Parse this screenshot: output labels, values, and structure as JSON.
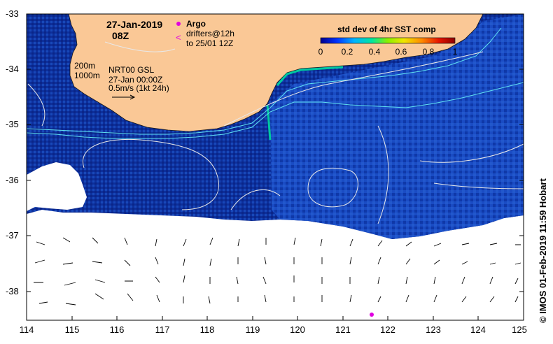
{
  "map": {
    "date": "27-Jan-2019",
    "hour": "08Z",
    "argo_label": "Argo",
    "drifters_label_line1": "drifters@12h",
    "drifters_label_line2": "to 25/01 12Z",
    "isobath_200": "200m",
    "isobath_1000": "1000m",
    "product_line1": "NRT00 GSL",
    "product_line2": "27-Jan 00:00Z",
    "product_line3": "0.5m/s (1kt 24h)",
    "credit": "© IMOS 01-Feb-2019 11:59 Hobart",
    "colors": {
      "land": "#fac896",
      "ocean_low": "#0a2a96",
      "ocean_mid": "#1448b4",
      "argo": "#e000e0",
      "drifter": "#e000e0"
    }
  },
  "colorbar": {
    "title": "std dev of 4hr SST comp",
    "ticks": [
      "0",
      "0.2",
      "0.4",
      "0.6",
      "0.8",
      "1"
    ],
    "colors": [
      "#00008c",
      "#0032ff",
      "#00b4ff",
      "#00e6a0",
      "#8cf000",
      "#f0e600",
      "#ff8c00",
      "#e61400",
      "#8c0000"
    ]
  },
  "axes": {
    "x_ticks": [
      "114",
      "115",
      "116",
      "117",
      "118",
      "119",
      "120",
      "121",
      "122",
      "123",
      "124",
      "125"
    ],
    "y_ticks": [
      "-33",
      "-34",
      "-35",
      "-36",
      "-37",
      "-38"
    ]
  }
}
